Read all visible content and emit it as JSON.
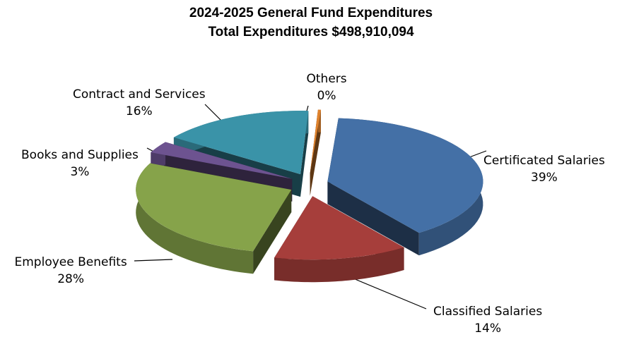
{
  "chart_data": {
    "type": "pie",
    "title": "2024-2025 General Fund Expenditures",
    "subtitle": "Total Expenditures $498,910,094",
    "slices": [
      {
        "label": "Certificated Salaries",
        "value": 39,
        "value_label": "39%",
        "color": "#4470A6"
      },
      {
        "label": "Classified Salaries",
        "value": 14,
        "value_label": "14%",
        "color": "#A63E3B"
      },
      {
        "label": "Employee Benefits",
        "value": 28,
        "value_label": "28%",
        "color": "#86A34A"
      },
      {
        "label": "Books and Supplies",
        "value": 3,
        "value_label": "3%",
        "color": "#6D5390"
      },
      {
        "label": "Contract and Services",
        "value": 16,
        "value_label": "16%",
        "color": "#3A93A8"
      },
      {
        "label": "Others",
        "value": 0.3,
        "value_label": "0%",
        "color": "#E0832E"
      }
    ],
    "legend": "none",
    "style": "3d-exploded"
  }
}
